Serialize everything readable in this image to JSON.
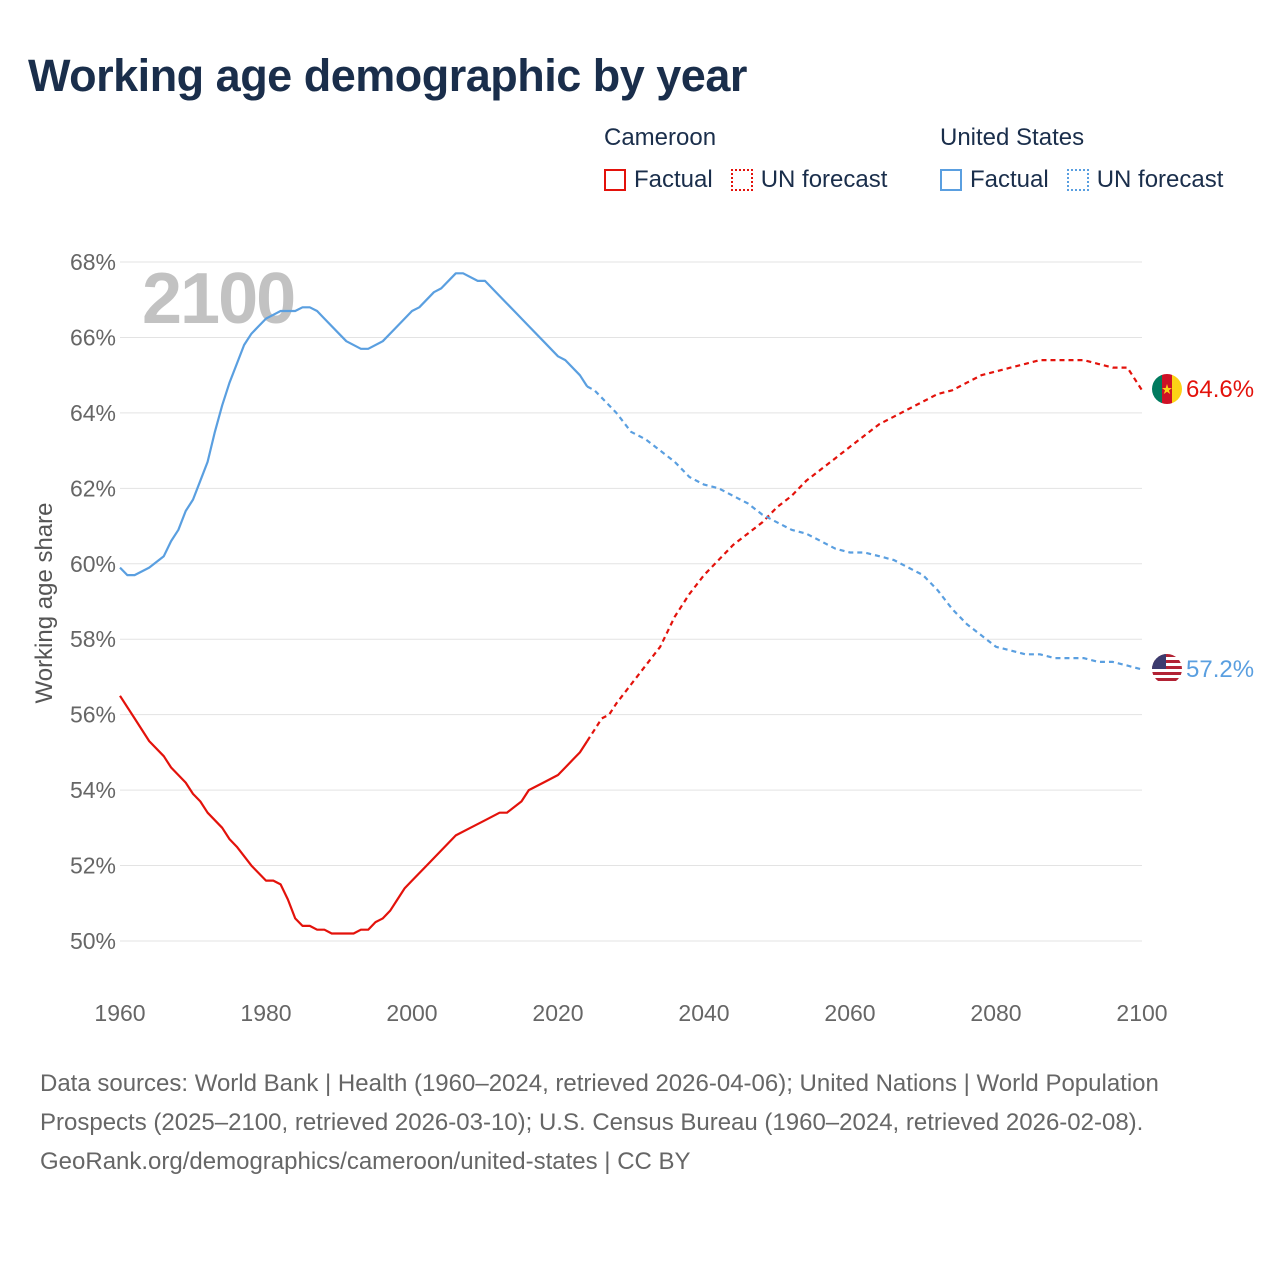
{
  "title": "Working age demographic by year",
  "legend": {
    "groups": [
      {
        "country": "Cameroon",
        "color": "#e3120b",
        "items": [
          "Factual",
          "UN forecast"
        ]
      },
      {
        "country": "United States",
        "color": "#5a9fe0",
        "items": [
          "Factual",
          "UN forecast"
        ]
      }
    ]
  },
  "watermark_year": "2100",
  "end_labels": {
    "cameroon": "64.6%",
    "united_states": "57.2%"
  },
  "source": {
    "line1": "Data sources: World Bank | Health (1960–2024, retrieved 2026-04-06); United Nations | World Population Prospects (2025–2100, retrieved 2026-03-10); U.S. Census Bureau (1960–2024, retrieved 2026-02-08).",
    "line2": "GeoRank.org/demographics/cameroon/united-states | CC BY"
  },
  "chart_data": {
    "type": "line",
    "title": "Working age demographic by year",
    "xlabel": "",
    "ylabel": "Working age share",
    "xlim": [
      1960,
      2100
    ],
    "ylim": [
      49,
      68
    ],
    "x_ticks": [
      1960,
      1980,
      2000,
      2020,
      2040,
      2060,
      2080,
      2100
    ],
    "y_ticks": [
      50,
      52,
      54,
      56,
      58,
      60,
      62,
      64,
      66,
      68
    ],
    "y_tick_labels": [
      "50%",
      "52%",
      "54%",
      "56%",
      "58%",
      "60%",
      "62%",
      "64%",
      "66%",
      "68%"
    ],
    "grid": true,
    "forecast_start": 2024,
    "series": [
      {
        "name": "Cameroon",
        "color": "#e3120b",
        "points": [
          [
            1960,
            56.5
          ],
          [
            1962,
            55.9
          ],
          [
            1964,
            55.3
          ],
          [
            1966,
            54.9
          ],
          [
            1967,
            54.6
          ],
          [
            1969,
            54.2
          ],
          [
            1970,
            53.9
          ],
          [
            1971,
            53.7
          ],
          [
            1972,
            53.4
          ],
          [
            1974,
            53.0
          ],
          [
            1975,
            52.7
          ],
          [
            1976,
            52.5
          ],
          [
            1978,
            52.0
          ],
          [
            1980,
            51.6
          ],
          [
            1981,
            51.6
          ],
          [
            1982,
            51.5
          ],
          [
            1983,
            51.1
          ],
          [
            1984,
            50.6
          ],
          [
            1985,
            50.4
          ],
          [
            1986,
            50.4
          ],
          [
            1987,
            50.3
          ],
          [
            1988,
            50.3
          ],
          [
            1989,
            50.2
          ],
          [
            1990,
            50.2
          ],
          [
            1991,
            50.2
          ],
          [
            1992,
            50.2
          ],
          [
            1993,
            50.3
          ],
          [
            1994,
            50.3
          ],
          [
            1995,
            50.5
          ],
          [
            1996,
            50.6
          ],
          [
            1997,
            50.8
          ],
          [
            1998,
            51.1
          ],
          [
            1999,
            51.4
          ],
          [
            2000,
            51.6
          ],
          [
            2002,
            52.0
          ],
          [
            2004,
            52.4
          ],
          [
            2006,
            52.8
          ],
          [
            2008,
            53.0
          ],
          [
            2010,
            53.2
          ],
          [
            2012,
            53.4
          ],
          [
            2013,
            53.4
          ],
          [
            2015,
            53.7
          ],
          [
            2016,
            54.0
          ],
          [
            2018,
            54.2
          ],
          [
            2020,
            54.4
          ],
          [
            2021,
            54.6
          ],
          [
            2022,
            54.8
          ],
          [
            2023,
            55.0
          ],
          [
            2024,
            55.3
          ],
          [
            2025,
            55.6
          ],
          [
            2026,
            55.9
          ],
          [
            2027,
            56.0
          ],
          [
            2028,
            56.3
          ],
          [
            2030,
            56.8
          ],
          [
            2032,
            57.3
          ],
          [
            2034,
            57.8
          ],
          [
            2035,
            58.2
          ],
          [
            2036,
            58.6
          ],
          [
            2038,
            59.2
          ],
          [
            2040,
            59.7
          ],
          [
            2042,
            60.1
          ],
          [
            2044,
            60.5
          ],
          [
            2046,
            60.8
          ],
          [
            2048,
            61.1
          ],
          [
            2050,
            61.5
          ],
          [
            2052,
            61.8
          ],
          [
            2054,
            62.2
          ],
          [
            2056,
            62.5
          ],
          [
            2058,
            62.8
          ],
          [
            2060,
            63.1
          ],
          [
            2062,
            63.4
          ],
          [
            2064,
            63.7
          ],
          [
            2066,
            63.9
          ],
          [
            2068,
            64.1
          ],
          [
            2070,
            64.3
          ],
          [
            2072,
            64.5
          ],
          [
            2074,
            64.6
          ],
          [
            2076,
            64.8
          ],
          [
            2078,
            65.0
          ],
          [
            2080,
            65.1
          ],
          [
            2082,
            65.2
          ],
          [
            2084,
            65.3
          ],
          [
            2086,
            65.4
          ],
          [
            2088,
            65.4
          ],
          [
            2090,
            65.4
          ],
          [
            2092,
            65.4
          ],
          [
            2094,
            65.3
          ],
          [
            2096,
            65.2
          ],
          [
            2098,
            65.2
          ],
          [
            2100,
            64.6
          ]
        ]
      },
      {
        "name": "United States",
        "color": "#5a9fe0",
        "points": [
          [
            1960,
            59.9
          ],
          [
            1961,
            59.7
          ],
          [
            1962,
            59.7
          ],
          [
            1964,
            59.9
          ],
          [
            1966,
            60.2
          ],
          [
            1967,
            60.6
          ],
          [
            1968,
            60.9
          ],
          [
            1969,
            61.4
          ],
          [
            1970,
            61.7
          ],
          [
            1971,
            62.2
          ],
          [
            1972,
            62.7
          ],
          [
            1973,
            63.5
          ],
          [
            1974,
            64.2
          ],
          [
            1975,
            64.8
          ],
          [
            1976,
            65.3
          ],
          [
            1977,
            65.8
          ],
          [
            1978,
            66.1
          ],
          [
            1979,
            66.3
          ],
          [
            1980,
            66.5
          ],
          [
            1981,
            66.6
          ],
          [
            1982,
            66.7
          ],
          [
            1983,
            66.7
          ],
          [
            1984,
            66.7
          ],
          [
            1985,
            66.8
          ],
          [
            1986,
            66.8
          ],
          [
            1987,
            66.7
          ],
          [
            1988,
            66.5
          ],
          [
            1990,
            66.1
          ],
          [
            1991,
            65.9
          ],
          [
            1993,
            65.7
          ],
          [
            1994,
            65.7
          ],
          [
            1996,
            65.9
          ],
          [
            1998,
            66.3
          ],
          [
            2000,
            66.7
          ],
          [
            2001,
            66.8
          ],
          [
            2003,
            67.2
          ],
          [
            2004,
            67.3
          ],
          [
            2006,
            67.7
          ],
          [
            2007,
            67.7
          ],
          [
            2009,
            67.5
          ],
          [
            2010,
            67.5
          ],
          [
            2012,
            67.1
          ],
          [
            2014,
            66.7
          ],
          [
            2016,
            66.3
          ],
          [
            2018,
            65.9
          ],
          [
            2020,
            65.5
          ],
          [
            2021,
            65.4
          ],
          [
            2023,
            65.0
          ],
          [
            2024,
            64.7
          ],
          [
            2025,
            64.6
          ],
          [
            2026,
            64.4
          ],
          [
            2028,
            64.0
          ],
          [
            2030,
            63.5
          ],
          [
            2032,
            63.3
          ],
          [
            2034,
            63.0
          ],
          [
            2036,
            62.7
          ],
          [
            2038,
            62.3
          ],
          [
            2040,
            62.1
          ],
          [
            2042,
            62.0
          ],
          [
            2044,
            61.8
          ],
          [
            2046,
            61.6
          ],
          [
            2048,
            61.3
          ],
          [
            2050,
            61.1
          ],
          [
            2052,
            60.9
          ],
          [
            2054,
            60.8
          ],
          [
            2056,
            60.6
          ],
          [
            2058,
            60.4
          ],
          [
            2060,
            60.3
          ],
          [
            2062,
            60.3
          ],
          [
            2064,
            60.2
          ],
          [
            2066,
            60.1
          ],
          [
            2068,
            59.9
          ],
          [
            2070,
            59.7
          ],
          [
            2072,
            59.3
          ],
          [
            2074,
            58.8
          ],
          [
            2076,
            58.4
          ],
          [
            2078,
            58.1
          ],
          [
            2080,
            57.8
          ],
          [
            2082,
            57.7
          ],
          [
            2084,
            57.6
          ],
          [
            2086,
            57.6
          ],
          [
            2088,
            57.5
          ],
          [
            2090,
            57.5
          ],
          [
            2092,
            57.5
          ],
          [
            2094,
            57.4
          ],
          [
            2096,
            57.4
          ],
          [
            2098,
            57.3
          ],
          [
            2100,
            57.2
          ]
        ]
      }
    ]
  }
}
